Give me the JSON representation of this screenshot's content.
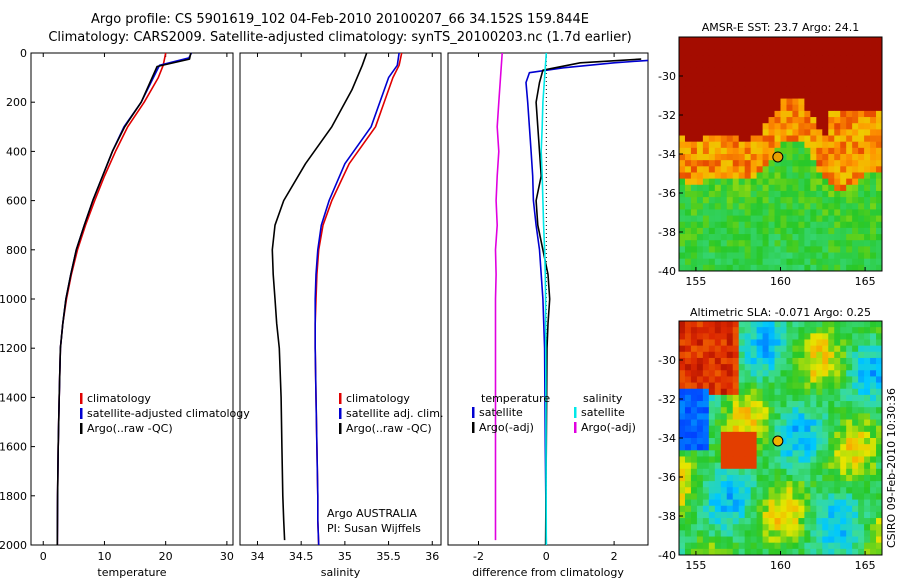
{
  "title_line1": "Argo profile: CS 5901619_102 04-Feb-2010 20100207_66 34.152S 159.844E",
  "title_line2": "Climatology: CARS2009. Satellite-adjusted climatology: synTS_20100203.nc (1.7d earlier)",
  "side_text": "CSIRO 09-Feb-2010 10:30:36",
  "credit_line1": "Argo AUSTRALIA",
  "credit_line2": "PI: Susan Wijffels",
  "colors": {
    "climatology": "#e00000",
    "satellite": "#0000d0",
    "argo": "#000000",
    "sat_temp_diff": "#00e8e8",
    "argo_sal_diff": "#e000e0"
  },
  "chart_data": [
    {
      "type": "line",
      "xlabel": "temperature",
      "ylabel": "",
      "xlim": [
        -2,
        31
      ],
      "ylim": [
        2000,
        0
      ],
      "xticks": [
        0,
        10,
        20,
        30
      ],
      "yticks": [
        0,
        200,
        400,
        600,
        800,
        1000,
        1200,
        1400,
        1600,
        1800,
        2000
      ],
      "legend": [
        "climatology",
        "satellite-adjusted climatology",
        "Argo(..raw -QC)"
      ],
      "series": [
        {
          "name": "climatology",
          "color": "#e00000",
          "x": [
            20.0,
            19.6,
            18.8,
            16.5,
            13.8,
            11.8,
            10.0,
            8.4,
            6.9,
            5.6,
            4.6,
            3.8,
            3.2,
            2.8,
            2.6,
            2.45,
            2.35,
            2.3
          ],
          "y": [
            0,
            50,
            100,
            200,
            300,
            400,
            500,
            600,
            700,
            800,
            900,
            1000,
            1100,
            1200,
            1400,
            1600,
            1800,
            2000
          ]
        },
        {
          "name": "satellite-adjusted climatology",
          "color": "#0000d0",
          "x": [
            24.2,
            23.8,
            19.0,
            16.0,
            13.2,
            11.3,
            9.7,
            8.1,
            6.7,
            5.4,
            4.5,
            3.7,
            3.2,
            2.8,
            2.6,
            2.45,
            2.35,
            2.3
          ],
          "y": [
            0,
            20,
            50,
            200,
            300,
            400,
            500,
            600,
            700,
            800,
            900,
            1000,
            1100,
            1200,
            1400,
            1600,
            1800,
            2000
          ]
        },
        {
          "name": "Argo(..raw -QC)",
          "color": "#000000",
          "x": [
            24.1,
            23.9,
            18.6,
            16.0,
            13.3,
            11.3,
            9.7,
            8.1,
            6.7,
            5.4,
            4.5,
            3.7,
            3.2,
            2.8,
            2.6,
            2.45,
            2.35,
            2.3
          ],
          "y": [
            0,
            25,
            55,
            200,
            300,
            400,
            500,
            600,
            700,
            800,
            900,
            1000,
            1100,
            1200,
            1400,
            1600,
            1800,
            2000
          ]
        }
      ]
    },
    {
      "type": "line",
      "xlabel": "salinity",
      "xlim": [
        33.8,
        36.1
      ],
      "ylim": [
        2000,
        0
      ],
      "xticks": [
        34,
        34.5,
        35,
        35.5,
        36
      ],
      "xticklabels": [
        "34",
        "34.5",
        "35",
        "35.5",
        "36"
      ],
      "legend": [
        "climatology",
        "satellite adj. clim.",
        "Argo(..raw -QC)"
      ],
      "series": [
        {
          "name": "climatology",
          "color": "#e00000",
          "x": [
            35.65,
            35.62,
            35.55,
            35.35,
            35.05,
            34.85,
            34.75,
            34.7,
            34.68,
            34.67,
            34.66,
            34.66,
            34.67,
            34.68,
            34.69,
            34.69,
            34.7
          ],
          "y": [
            0,
            50,
            100,
            300,
            450,
            600,
            700,
            800,
            900,
            1000,
            1100,
            1200,
            1400,
            1600,
            1800,
            1900,
            2000
          ]
        },
        {
          "name": "satellite adj. clim.",
          "color": "#0000d0",
          "x": [
            35.62,
            35.6,
            35.5,
            35.3,
            35.0,
            34.82,
            34.73,
            34.69,
            34.67,
            34.66,
            34.66,
            34.66,
            34.67,
            34.68,
            34.69,
            34.69,
            34.7
          ],
          "y": [
            0,
            50,
            100,
            300,
            450,
            600,
            700,
            800,
            900,
            1000,
            1100,
            1200,
            1400,
            1600,
            1800,
            1900,
            2000
          ]
        },
        {
          "name": "Argo(..raw -QC)",
          "color": "#000000",
          "x": [
            35.25,
            35.2,
            35.08,
            34.85,
            34.55,
            34.3,
            34.2,
            34.17,
            34.18,
            34.2,
            34.22,
            34.25,
            34.27,
            34.28,
            34.29,
            34.3,
            34.31
          ],
          "y": [
            0,
            50,
            150,
            300,
            450,
            600,
            700,
            800,
            900,
            1000,
            1100,
            1200,
            1400,
            1600,
            1800,
            1900,
            1980
          ]
        }
      ]
    },
    {
      "type": "line",
      "xlabel": "difference from climatology",
      "xlim": [
        -2.9,
        3.0
      ],
      "ylim": [
        2000,
        0
      ],
      "xticks": [
        -2,
        0,
        2
      ],
      "reference_line_x": 0,
      "legend_headers": [
        "temperature",
        "salinity"
      ],
      "legend": [
        "satellite",
        "Argo(-adj)",
        "satellite",
        "Argo(-adj)"
      ],
      "series": [
        {
          "name": "satellite",
          "group": "temperature",
          "color": "#0000d0",
          "x": [
            3.0,
            2.0,
            0.5,
            -0.5,
            -0.6,
            -0.55,
            -0.5,
            -0.45,
            -0.4,
            -0.38,
            -0.3,
            -0.2,
            -0.15,
            -0.1,
            -0.05,
            -0.03,
            0.0
          ],
          "y": [
            30,
            40,
            60,
            80,
            120,
            200,
            300,
            400,
            500,
            600,
            700,
            800,
            900,
            1000,
            1200,
            1600,
            2000
          ]
        },
        {
          "name": "Argo(-adj)",
          "group": "temperature",
          "color": "#000000",
          "x": [
            2.8,
            1.0,
            -0.1,
            -0.2,
            -0.3,
            -0.25,
            -0.2,
            -0.15,
            -0.3,
            -0.25,
            -0.1,
            0.05,
            0.1,
            0.05,
            0.02,
            0.0,
            -0.02
          ],
          "y": [
            25,
            40,
            70,
            120,
            200,
            300,
            400,
            500,
            600,
            700,
            800,
            900,
            1000,
            1100,
            1200,
            1600,
            2000
          ]
        },
        {
          "name": "satellite",
          "group": "salinity",
          "color": "#00e8e8",
          "x": [
            0.0,
            -0.05,
            -0.1,
            -0.12,
            -0.15,
            -0.12,
            -0.1,
            -0.08,
            -0.05,
            -0.03,
            -0.02,
            0.0
          ],
          "y": [
            0,
            100,
            200,
            300,
            400,
            500,
            600,
            700,
            800,
            900,
            1000,
            2000
          ]
        },
        {
          "name": "Argo(-adj)",
          "group": "salinity",
          "color": "#e000e0",
          "x": [
            -1.3,
            -1.35,
            -1.4,
            -1.45,
            -1.4,
            -1.45,
            -1.48,
            -1.45,
            -1.5,
            -1.48,
            -1.5,
            -1.5,
            -1.5,
            -1.5,
            -1.5,
            -1.5
          ],
          "y": [
            0,
            100,
            200,
            300,
            400,
            500,
            600,
            700,
            800,
            900,
            1000,
            1200,
            1400,
            1600,
            1800,
            1980
          ]
        }
      ]
    },
    {
      "type": "heatmap",
      "title": "AMSR-E SST: 23.7  Argo: 24.1",
      "xlim": [
        154,
        166
      ],
      "ylim": [
        -40,
        -28
      ],
      "xticks": [
        155,
        160,
        165
      ],
      "yticks": [
        -30,
        -32,
        -34,
        -36,
        -38,
        -40
      ],
      "marker": {
        "lon": 159.844,
        "lat": -34.152
      }
    },
    {
      "type": "heatmap",
      "title": "Altimetric SLA: -0.071  Argo: 0.25",
      "xlim": [
        154,
        166
      ],
      "ylim": [
        -40,
        -28
      ],
      "xticks": [
        155,
        160,
        165
      ],
      "yticks": [
        -30,
        -32,
        -34,
        -36,
        -38,
        -40
      ],
      "marker": {
        "lon": 159.844,
        "lat": -34.152
      }
    }
  ]
}
